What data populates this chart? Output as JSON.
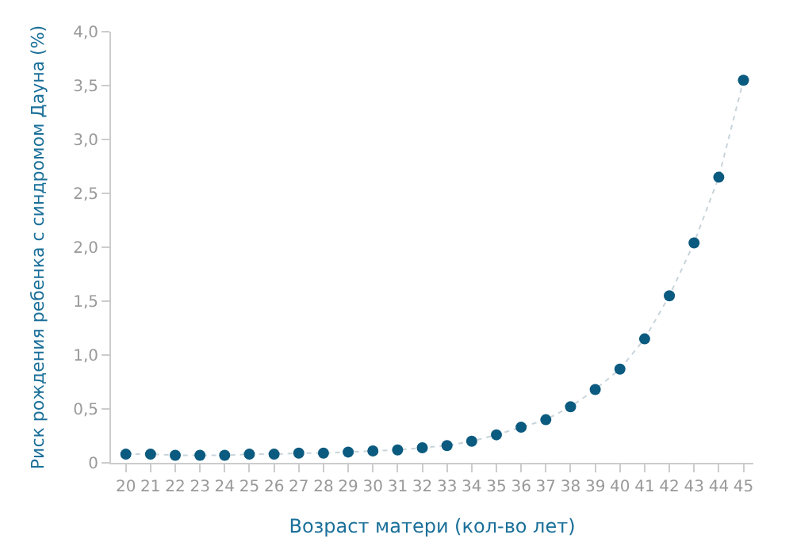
{
  "chart_data": {
    "type": "line",
    "xlabel": "Возраст матери (кол-во лет)",
    "ylabel": "Риск рождения ребенка с синдромом Дауна (%)",
    "categories": [
      "20",
      "21",
      "22",
      "23",
      "24",
      "25",
      "26",
      "27",
      "28",
      "29",
      "30",
      "31",
      "32",
      "33",
      "34",
      "35",
      "36",
      "37",
      "38",
      "39",
      "40",
      "41",
      "42",
      "43",
      "44",
      "45"
    ],
    "series": [
      {
        "color": "#0b5a7f",
        "values": [
          0.08,
          0.08,
          0.07,
          0.07,
          0.07,
          0.08,
          0.08,
          0.09,
          0.09,
          0.1,
          0.11,
          0.12,
          0.14,
          0.16,
          0.2,
          0.26,
          0.33,
          0.4,
          0.52,
          0.68,
          0.87,
          1.15,
          1.55,
          2.04,
          2.65,
          3.55
        ]
      }
    ],
    "ylim": [
      0,
      4.0
    ],
    "yticks": [
      0,
      {
        "value": 0.5,
        "label": "0,5"
      },
      {
        "value": 1.0,
        "label": "1,0"
      },
      {
        "value": 1.5,
        "label": "1,5"
      },
      {
        "value": 2.0,
        "label": "2,0"
      },
      {
        "value": 2.5,
        "label": "2,5"
      },
      {
        "value": 3.0,
        "label": "3,0"
      },
      {
        "value": 3.5,
        "label": "3,5"
      },
      {
        "value": 4.0,
        "label": "4,0"
      }
    ],
    "marker": "circle",
    "line_style": "dotted"
  }
}
